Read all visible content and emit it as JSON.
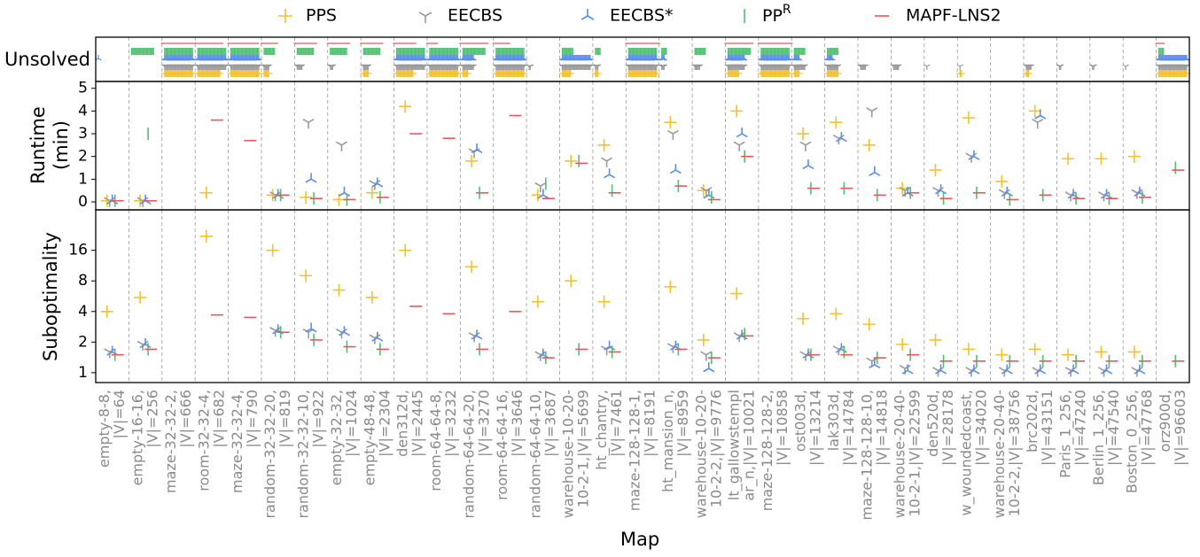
{
  "chart_data": [
    {
      "type": "count",
      "ylabel": "Unsolved",
      "series": [
        {
          "name": "PPS",
          "color": "#f2c12e",
          "marker": "plus",
          "values": [
            0,
            0,
            25,
            20,
            25,
            5,
            0,
            0,
            5,
            15,
            25,
            5,
            25,
            0,
            8,
            3,
            25,
            0,
            0,
            10,
            25,
            5,
            10,
            0,
            0,
            0,
            2,
            0,
            3,
            0,
            0,
            0,
            25
          ]
        },
        {
          "name": "EECBS",
          "color": "#9a9a9a",
          "marker": "tri_down",
          "values": [
            0,
            0,
            25,
            25,
            25,
            5,
            5,
            3,
            5,
            25,
            25,
            10,
            25,
            2,
            25,
            3,
            25,
            3,
            5,
            15,
            25,
            10,
            10,
            5,
            5,
            1,
            1,
            0,
            5,
            2,
            2,
            1,
            25
          ]
        },
        {
          "name": "EECBS*",
          "color": "#5b8ee6",
          "marker": "tri_up",
          "values": [
            1,
            0,
            25,
            25,
            25,
            0,
            0,
            0,
            0,
            25,
            25,
            10,
            25,
            0,
            25,
            0,
            25,
            3,
            0,
            15,
            25,
            5,
            5,
            0,
            0,
            0,
            0,
            0,
            0,
            0,
            0,
            0,
            25
          ]
        },
        {
          "name": "PP",
          "superscript": "R",
          "color": "#4fc06e",
          "marker": "vline",
          "values": [
            0,
            20,
            25,
            25,
            25,
            10,
            15,
            15,
            15,
            25,
            25,
            20,
            25,
            0,
            10,
            5,
            25,
            5,
            10,
            20,
            25,
            10,
            10,
            0,
            0,
            0,
            0,
            0,
            0,
            0,
            0,
            0,
            5
          ]
        },
        {
          "name": "MAPF-LNS2",
          "color": "#e8575a",
          "marker": "hline",
          "values": [
            0,
            0,
            25,
            20,
            22,
            10,
            15,
            15,
            15,
            15,
            5,
            20,
            10,
            0,
            0,
            0,
            25,
            0,
            0,
            20,
            25,
            0,
            0,
            0,
            0,
            0,
            0,
            0,
            0,
            0,
            0,
            0,
            3
          ]
        }
      ]
    },
    {
      "type": "scatter",
      "ylabel": [
        "Runtime",
        "(min)"
      ],
      "ylim": [
        -0.35,
        5.3
      ],
      "yticks": [
        0,
        1,
        2,
        3,
        4,
        5
      ],
      "series": [
        {
          "color": "#f2c12e",
          "values": [
            0.05,
            0.05,
            null,
            0.4,
            null,
            0.3,
            0.2,
            0.1,
            0.4,
            4.2,
            null,
            1.8,
            null,
            0.3,
            1.8,
            2.5,
            null,
            3.5,
            0.5,
            4,
            null,
            3,
            3.5,
            2.5,
            0.6,
            1.4,
            3.7,
            0.9,
            4,
            1.9,
            1.9,
            2,
            null
          ]
        },
        {
          "color": "#9a9a9a",
          "values": [
            0.05,
            0.05,
            null,
            null,
            null,
            0.3,
            3.5,
            2.5,
            0.8,
            null,
            null,
            2.2,
            null,
            0.7,
            null,
            1.8,
            null,
            3,
            0.5,
            2.5,
            null,
            2.5,
            2.8,
            4,
            0.5,
            0.5,
            2,
            0.4,
            3.5,
            0.3,
            0.3,
            0.4,
            null
          ]
        },
        {
          "color": "#5b8ee6",
          "values": [
            0.05,
            0.05,
            null,
            null,
            null,
            0.3,
            1,
            0.4,
            0.8,
            null,
            null,
            2.3,
            null,
            0.3,
            null,
            1.2,
            null,
            1.4,
            0.3,
            3,
            null,
            1.6,
            2.8,
            1.3,
            0.4,
            0.5,
            2,
            0.4,
            3.8,
            0.3,
            0.3,
            0.4,
            null
          ]
        },
        {
          "color": "#4fc06e",
          "values": [
            0.05,
            3,
            null,
            null,
            null,
            0.3,
            0.15,
            0.1,
            0.2,
            null,
            null,
            0.4,
            null,
            0.8,
            1.8,
            0.5,
            null,
            0.7,
            0.2,
            2,
            null,
            0.6,
            0.6,
            0.3,
            0.4,
            0.15,
            0.4,
            0.1,
            0.3,
            0.15,
            0.15,
            0.2,
            1.5
          ]
        },
        {
          "color": "#e8575a",
          "values": [
            0.05,
            0.05,
            null,
            3.6,
            2.7,
            0.3,
            0.15,
            0.1,
            0.2,
            3,
            2.8,
            0.4,
            3.8,
            0.15,
            1.7,
            0.4,
            null,
            0.7,
            0.1,
            2,
            null,
            0.6,
            0.6,
            0.3,
            0.4,
            0.15,
            0.4,
            0.1,
            0.3,
            0.15,
            0.15,
            0.2,
            1.4
          ]
        }
      ]
    },
    {
      "type": "scatter",
      "ylabel": "Suboptimality",
      "xlabel": "Map",
      "log_scale": true,
      "ylim": [
        0.8,
        40
      ],
      "yticks": [
        1,
        2,
        4,
        8,
        16
      ],
      "categories": [
        [
          "empty-8-8,",
          "|V|=64"
        ],
        [
          "empty-16-16,",
          "|V|=256"
        ],
        [
          "maze-32-32-2,",
          "|V|=666"
        ],
        [
          "room-32-32-4,",
          "|V|=682"
        ],
        [
          "maze-32-32-4,",
          "|V|=790"
        ],
        [
          "random-32-32-20,",
          "|V|=819"
        ],
        [
          "random-32-32-10,",
          "|V|=922"
        ],
        [
          "empty-32-32,",
          "|V|=1024"
        ],
        [
          "empty-48-48,",
          "|V|=2304"
        ],
        [
          "den312d,",
          "|V|=2445"
        ],
        [
          "room-64-64-8,",
          "|V|=3232"
        ],
        [
          "random-64-64-20,",
          "|V|=3270"
        ],
        [
          "room-64-64-16,",
          "|V|=3646"
        ],
        [
          "random-64-64-10,",
          "|V|=3687"
        ],
        [
          "warehouse-10-20-",
          "10-2-1,|V|=5699"
        ],
        [
          "ht_chantry,",
          "|V|=7461"
        ],
        [
          "maze-128-128-1,",
          "|V|=8191"
        ],
        [
          "ht_mansion_n,",
          "|V|=8959"
        ],
        [
          "warehouse-10-20-",
          "10-2-2,|V|=9776"
        ],
        [
          "lt_gallowstempl",
          "ar_n,|V|=10021"
        ],
        [
          "maze-128-128-2,",
          "|V|=10858"
        ],
        [
          "ost003d,",
          "|V|=13214"
        ],
        [
          "lak303d,",
          "|V|=14784"
        ],
        [
          "maze-128-128-10,",
          "|V|=14818"
        ],
        [
          "warehouse-20-40-",
          "10-2-1,|V|=22599"
        ],
        [
          "den520d,",
          "|V|=28178"
        ],
        [
          "w_woundedcoast,",
          "|V|=34020"
        ],
        [
          "warehouse-20-40-",
          "10-2-2,|V|=38756"
        ],
        [
          "brc202d,",
          "|V|=43151"
        ],
        [
          "Paris_1_256,",
          "|V|=47240"
        ],
        [
          "Berlin_1_256,",
          "|V|=47540"
        ],
        [
          "Boston_0_256,",
          "|V|=47768"
        ],
        [
          "orz900d,",
          "|V|=96603"
        ]
      ],
      "series": [
        {
          "color": "#f2c12e",
          "values": [
            4,
            5.5,
            null,
            22,
            null,
            16,
            9,
            6.5,
            5.5,
            16,
            null,
            11,
            null,
            5,
            8,
            5,
            null,
            7,
            2.1,
            6,
            null,
            3.4,
            3.8,
            3,
            1.9,
            2.1,
            1.7,
            1.5,
            1.7,
            1.5,
            1.6,
            1.6,
            null
          ]
        },
        {
          "color": "#9a9a9a",
          "values": [
            1.6,
            1.9,
            null,
            null,
            null,
            2.6,
            2.5,
            2.5,
            2.2,
            null,
            null,
            2.3,
            null,
            1.5,
            null,
            1.7,
            null,
            1.8,
            1.5,
            2.3,
            null,
            1.5,
            1.7,
            1.3,
            1.1,
            1.05,
            1.05,
            1.05,
            1.05,
            1.05,
            1.05,
            1.05,
            null
          ]
        },
        {
          "color": "#5b8ee6",
          "values": [
            1.6,
            1.9,
            null,
            null,
            null,
            2.6,
            2.7,
            2.5,
            2.2,
            null,
            null,
            2.3,
            null,
            1.5,
            null,
            1.8,
            null,
            1.8,
            1.1,
            2.3,
            null,
            1.5,
            1.7,
            1.2,
            1.05,
            1.05,
            1.05,
            1.05,
            1.05,
            1.05,
            1.05,
            1.05,
            null
          ]
        },
        {
          "color": "#4fc06e",
          "values": [
            1.5,
            1.7,
            null,
            null,
            null,
            2.5,
            2.1,
            1.8,
            1.7,
            null,
            null,
            1.7,
            null,
            1.4,
            1.7,
            1.6,
            null,
            1.7,
            1.4,
            2.4,
            null,
            1.5,
            1.6,
            1.4,
            1.5,
            1.3,
            1.3,
            1.3,
            1.3,
            1.3,
            1.3,
            1.3,
            1.3
          ]
        },
        {
          "color": "#e8575a",
          "values": [
            1.5,
            1.7,
            null,
            3.7,
            3.5,
            2.5,
            2.1,
            1.8,
            1.7,
            4.5,
            3.8,
            1.7,
            4,
            1.4,
            1.7,
            1.6,
            null,
            1.7,
            1.4,
            2.3,
            null,
            1.5,
            1.5,
            1.4,
            1.5,
            1.3,
            1.3,
            1.3,
            1.3,
            1.3,
            1.3,
            1.3,
            1.3
          ]
        }
      ]
    }
  ]
}
